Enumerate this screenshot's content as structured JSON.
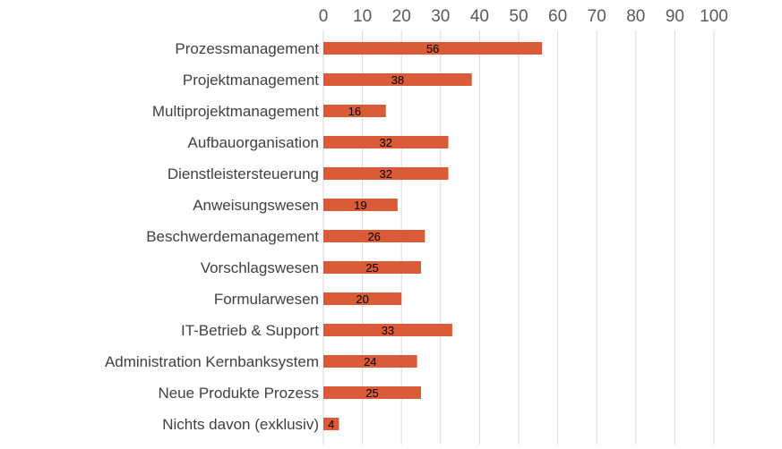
{
  "chart_data": {
    "type": "bar",
    "orientation": "horizontal",
    "title": "",
    "xlabel": "",
    "ylabel": "",
    "categories": [
      "Prozessmanagement",
      "Projektmanagement",
      "Multiprojektmanagement",
      "Aufbauorganisation",
      "Dienstleistersteuerung",
      "Anweisungswesen",
      "Beschwerdemanagement",
      "Vorschlagswesen",
      "Formularwesen",
      "IT-Betrieb & Support",
      "Administration Kernbanksystem",
      "Neue Produkte Prozess",
      "Nichts davon (exklusiv)"
    ],
    "values": [
      56,
      38,
      16,
      32,
      32,
      19,
      26,
      25,
      20,
      33,
      24,
      25,
      4
    ],
    "xlim": [
      0,
      100
    ],
    "xticks": [
      "0",
      "10",
      "20",
      "30",
      "40",
      "50",
      "60",
      "70",
      "80",
      "90",
      "100"
    ],
    "x_axis_position": "top",
    "grid": true,
    "legend": "none",
    "bar_color": "#d95b37",
    "data_labels": true
  }
}
